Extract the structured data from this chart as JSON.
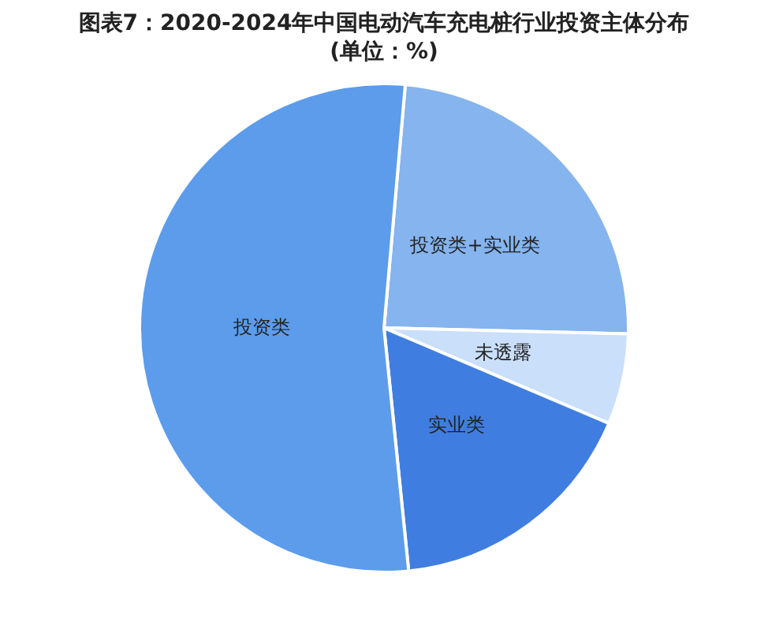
{
  "chart_data": {
    "type": "pie",
    "title": "图表7：2020-2024年中国电动汽车充电桩行业投资主体分布",
    "subtitle": "(单位：%)",
    "categories": [
      "投资类+实业类",
      "未透露",
      "实业类",
      "投资类"
    ],
    "values": [
      24,
      6,
      17,
      53
    ],
    "colors": [
      "#85b4ef",
      "#c9dffa",
      "#3f7ee0",
      "#5c9ceb"
    ],
    "legend": false
  }
}
